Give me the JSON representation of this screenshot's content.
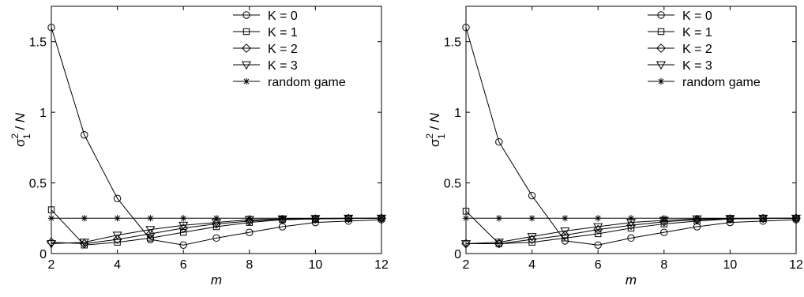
{
  "chart_data": [
    {
      "type": "line",
      "title": "",
      "xlabel": "m",
      "ylabel": {
        "sigma": "σ",
        "sup": "2",
        "sub": "1",
        "rest": " / ",
        "italic": "N"
      },
      "xlim": [
        2,
        12
      ],
      "ylim": [
        0,
        1.75
      ],
      "xticks": [
        2,
        4,
        6,
        8,
        10,
        12
      ],
      "yticks": [
        0,
        0.5,
        1,
        1.5
      ],
      "ytick_labels": [
        "0",
        "0.5",
        "1",
        "1.5"
      ],
      "grid": false,
      "legend_position": "top-right",
      "x": [
        2,
        3,
        4,
        5,
        6,
        7,
        8,
        9,
        10,
        11,
        12
      ],
      "series": [
        {
          "name": "K = 0",
          "marker": "circle",
          "values": [
            1.6,
            0.84,
            0.39,
            0.1,
            0.06,
            0.11,
            0.15,
            0.19,
            0.22,
            0.23,
            0.24
          ]
        },
        {
          "name": "K = 1",
          "marker": "square",
          "values": [
            0.31,
            0.06,
            0.08,
            0.11,
            0.15,
            0.19,
            0.22,
            0.24,
            0.245,
            0.248,
            0.25
          ]
        },
        {
          "name": "K = 2",
          "marker": "diamond",
          "values": [
            0.08,
            0.07,
            0.1,
            0.14,
            0.18,
            0.21,
            0.23,
            0.24,
            0.245,
            0.248,
            0.25
          ]
        },
        {
          "name": "K = 3",
          "marker": "triangle-down",
          "values": [
            0.07,
            0.08,
            0.13,
            0.17,
            0.2,
            0.22,
            0.24,
            0.245,
            0.248,
            0.25,
            0.25
          ]
        },
        {
          "name": "random game",
          "marker": "asterisk",
          "values": [
            0.25,
            0.25,
            0.25,
            0.25,
            0.25,
            0.25,
            0.25,
            0.25,
            0.25,
            0.25,
            0.25
          ]
        }
      ]
    },
    {
      "type": "line",
      "title": "",
      "xlabel": "m",
      "ylabel": {
        "sigma": "σ",
        "sup": "2",
        "sub": "1",
        "rest": " / ",
        "italic": "N"
      },
      "xlim": [
        2,
        12
      ],
      "ylim": [
        0,
        1.75
      ],
      "xticks": [
        2,
        4,
        6,
        8,
        10,
        12
      ],
      "yticks": [
        0,
        0.5,
        1,
        1.5
      ],
      "ytick_labels": [
        "0",
        "0.5",
        "1",
        "1.5"
      ],
      "grid": false,
      "legend_position": "top-right",
      "x": [
        2,
        3,
        4,
        5,
        6,
        7,
        8,
        9,
        10,
        11,
        12
      ],
      "series": [
        {
          "name": "K = 0",
          "marker": "circle",
          "values": [
            1.6,
            0.79,
            0.41,
            0.09,
            0.06,
            0.11,
            0.15,
            0.19,
            0.22,
            0.23,
            0.24
          ]
        },
        {
          "name": "K = 1",
          "marker": "square",
          "values": [
            0.3,
            0.07,
            0.08,
            0.11,
            0.14,
            0.18,
            0.21,
            0.23,
            0.245,
            0.248,
            0.25
          ]
        },
        {
          "name": "K = 2",
          "marker": "diamond",
          "values": [
            0.07,
            0.07,
            0.1,
            0.13,
            0.17,
            0.2,
            0.225,
            0.24,
            0.245,
            0.248,
            0.25
          ]
        },
        {
          "name": "K = 3",
          "marker": "triangle-down",
          "values": [
            0.07,
            0.08,
            0.12,
            0.16,
            0.19,
            0.22,
            0.235,
            0.245,
            0.248,
            0.25,
            0.25
          ]
        },
        {
          "name": "random game",
          "marker": "asterisk",
          "values": [
            0.25,
            0.25,
            0.25,
            0.25,
            0.25,
            0.25,
            0.25,
            0.25,
            0.25,
            0.25,
            0.25
          ]
        }
      ]
    }
  ]
}
